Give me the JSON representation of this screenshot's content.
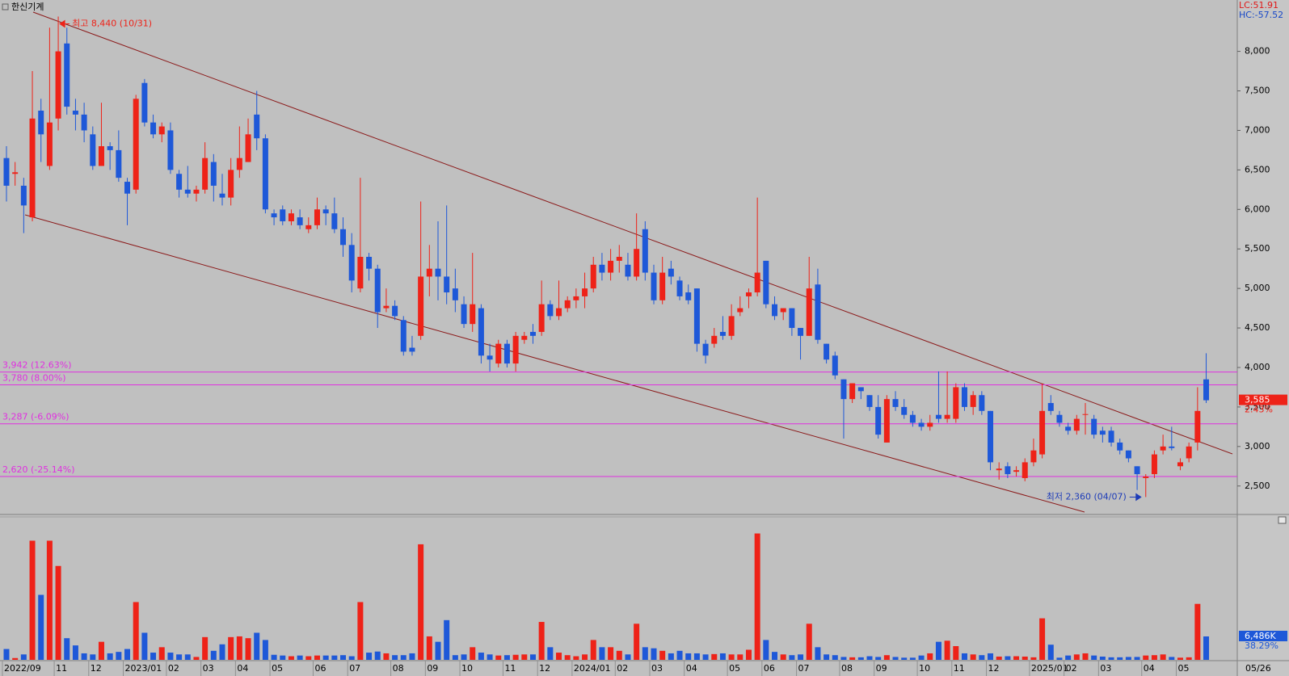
{
  "chart_data": {
    "type": "candlestick",
    "title": "한신기계",
    "indicator_lc": "LC:51.91",
    "indicator_hc": "HC:-57.52",
    "high_annotation": "최고 8,440 (10/31)",
    "low_annotation": "최저 2,360 (04/07)",
    "axis_date": "05/26",
    "up_color": "#ee2218",
    "down_color": "#1e58d8",
    "level_color": "#e030e0",
    "ylim": [
      2150,
      8650
    ],
    "yticks": [
      {
        "value": 2500,
        "label": "2,500"
      },
      {
        "value": 3000,
        "label": "3,000"
      },
      {
        "value": 3500,
        "label": "3,500"
      },
      {
        "value": 4000,
        "label": "4,000"
      },
      {
        "value": 4500,
        "label": "4,500"
      },
      {
        "value": 5000,
        "label": "5,000"
      },
      {
        "value": 5500,
        "label": "5,500"
      },
      {
        "value": 6000,
        "label": "6,000"
      },
      {
        "value": 6500,
        "label": "6,500"
      },
      {
        "value": 7000,
        "label": "7,000"
      },
      {
        "value": 7500,
        "label": "7,500"
      },
      {
        "value": 8000,
        "label": "8,000"
      }
    ],
    "levels": [
      {
        "value": 3942,
        "label": "3,942 (12.63%)"
      },
      {
        "value": 3780,
        "label": "3,780 (8.00%)"
      },
      {
        "value": 3287,
        "label": "3,287 (-6.09%)"
      },
      {
        "value": 2620,
        "label": "2,620 (-25.14%)"
      }
    ],
    "last_price": {
      "value": 3585,
      "label": "3,585"
    },
    "last_change": {
      "value": 2.43,
      "label": "2.43%"
    },
    "last_volume": {
      "value": 6486,
      "label": "6,486K"
    },
    "volume_ratio": {
      "value": 38.29,
      "label": "38.29%"
    },
    "categories": [
      "2022/09",
      null,
      null,
      null,
      null,
      null,
      "11",
      null,
      null,
      null,
      "12",
      null,
      null,
      null,
      "2023/01",
      null,
      null,
      null,
      null,
      "02",
      null,
      null,
      null,
      "03",
      null,
      null,
      null,
      "04",
      null,
      null,
      null,
      "05",
      null,
      null,
      null,
      null,
      "06",
      null,
      null,
      null,
      "07",
      null,
      null,
      null,
      null,
      "08",
      null,
      null,
      null,
      "09",
      null,
      null,
      null,
      "10",
      null,
      null,
      null,
      null,
      "11",
      null,
      null,
      null,
      "12",
      null,
      null,
      null,
      "2024/01",
      null,
      null,
      null,
      null,
      "02",
      null,
      null,
      null,
      "03",
      null,
      null,
      null,
      "04",
      null,
      null,
      null,
      null,
      "05",
      null,
      null,
      null,
      "06",
      null,
      null,
      null,
      "07",
      null,
      null,
      null,
      null,
      "08",
      null,
      null,
      null,
      "09",
      null,
      null,
      null,
      null,
      "10",
      null,
      null,
      null,
      "11",
      null,
      null,
      null,
      "12",
      null,
      null,
      null,
      null,
      "2025/01",
      null,
      null,
      null,
      "02",
      null,
      null,
      null,
      "03",
      null,
      null,
      null,
      null,
      "04",
      null,
      null,
      null,
      "05",
      null,
      null,
      null
    ],
    "open": [
      6650,
      6450,
      6300,
      5900,
      7250,
      6550,
      7150,
      8100,
      7250,
      7200,
      6950,
      6550,
      6800,
      6750,
      6350,
      6250,
      7600,
      7100,
      6950,
      7000,
      6450,
      6250,
      6200,
      6250,
      6600,
      6200,
      6150,
      6500,
      6600,
      7200,
      6900,
      5950,
      6000,
      5850,
      5900,
      5750,
      5800,
      6000,
      5950,
      5750,
      5550,
      5000,
      5400,
      5250,
      4750,
      4780,
      4600,
      4250,
      4400,
      5150,
      5250,
      5150,
      5000,
      4800,
      4550,
      4750,
      4150,
      4050,
      4300,
      4050,
      4350,
      4450,
      4450,
      4800,
      4650,
      4750,
      4850,
      4900,
      5000,
      5300,
      5200,
      5350,
      5300,
      5150,
      5750,
      5200,
      4850,
      5250,
      5100,
      4950,
      5000,
      4300,
      4300,
      4450,
      4400,
      4700,
      4900,
      4950,
      5350,
      4800,
      4700,
      4750,
      4500,
      4400,
      5050,
      4300,
      4150,
      3850,
      3600,
      3750,
      3650,
      3500,
      3050,
      3600,
      3500,
      3400,
      3300,
      3250,
      3400,
      3350,
      3350,
      3750,
      3500,
      3650,
      3450,
      2700,
      2750,
      2680,
      2600,
      2800,
      2900,
      3550,
      3400,
      3250,
      3200,
      3400,
      3350,
      3200,
      3200,
      3050,
      2950,
      2750,
      2600,
      2650,
      2950,
      3000,
      2750,
      2850,
      3050,
      3850
    ],
    "high": [
      6800,
      6600,
      6400,
      7750,
      7400,
      8300,
      8440,
      8300,
      7400,
      7350,
      7050,
      7350,
      6850,
      7000,
      6400,
      7450,
      7650,
      7200,
      7100,
      7100,
      6500,
      6550,
      6300,
      6850,
      6700,
      6450,
      6650,
      7050,
      7150,
      7500,
      6950,
      6000,
      6050,
      6000,
      6000,
      5900,
      6150,
      6050,
      6150,
      5900,
      5700,
      6400,
      5450,
      5300,
      5000,
      4850,
      4650,
      4400,
      6100,
      5550,
      5850,
      6050,
      5250,
      4900,
      5450,
      4800,
      4300,
      4350,
      4350,
      4450,
      4450,
      4550,
      5100,
      4850,
      5100,
      4900,
      5000,
      5200,
      5400,
      5450,
      5500,
      5550,
      5450,
      5950,
      5850,
      5300,
      5400,
      5350,
      5150,
      5050,
      5000,
      4350,
      4500,
      4650,
      4800,
      4900,
      5000,
      6150,
      5350,
      4900,
      4750,
      4750,
      4500,
      5400,
      5250,
      4300,
      4200,
      3850,
      3800,
      3750,
      3650,
      3650,
      3650,
      3700,
      3600,
      3450,
      3350,
      3400,
      3950,
      3950,
      3800,
      3800,
      3700,
      3700,
      3450,
      2800,
      2800,
      2750,
      2850,
      3100,
      3800,
      3650,
      3450,
      3300,
      3400,
      3550,
      3400,
      3250,
      3250,
      3100,
      2950,
      2750,
      2650,
      2950,
      3150,
      3250,
      2850,
      3050,
      3750,
      4180
    ],
    "low": [
      6100,
      6300,
      5700,
      5850,
      6600,
      6500,
      7000,
      7200,
      7000,
      6850,
      6500,
      6550,
      6500,
      6350,
      5800,
      6200,
      7050,
      6900,
      6850,
      6450,
      6150,
      6150,
      6100,
      6200,
      6100,
      6050,
      6050,
      6400,
      6600,
      6750,
      5950,
      5800,
      5800,
      5800,
      5750,
      5700,
      5750,
      5800,
      5700,
      5400,
      4950,
      4950,
      5100,
      4500,
      4700,
      4600,
      4150,
      4150,
      4350,
      4900,
      4850,
      4800,
      4700,
      4500,
      4450,
      4050,
      3950,
      4000,
      4000,
      3950,
      4300,
      4300,
      4400,
      4600,
      4600,
      4700,
      4750,
      4750,
      4950,
      5100,
      5100,
      5200,
      5100,
      5100,
      5100,
      4800,
      4800,
      5050,
      4850,
      4800,
      4200,
      4050,
      4250,
      4350,
      4350,
      4650,
      4750,
      4900,
      4750,
      4600,
      4600,
      4400,
      4100,
      4400,
      4300,
      4050,
      3850,
      3100,
      3550,
      3600,
      3450,
      3100,
      3050,
      3450,
      3350,
      3250,
      3200,
      3200,
      3300,
      3300,
      3300,
      3450,
      3400,
      3400,
      2700,
      2580,
      2600,
      2620,
      2560,
      2750,
      2850,
      3400,
      3250,
      3150,
      3150,
      3150,
      3100,
      3050,
      3000,
      2900,
      2800,
      2450,
      2360,
      2600,
      2900,
      2950,
      2700,
      2800,
      2950,
      3550
    ],
    "close": [
      6300,
      6470,
      6050,
      7150,
      6950,
      7100,
      8000,
      7300,
      7200,
      7000,
      6550,
      6800,
      6750,
      6400,
      6200,
      7400,
      7100,
      6950,
      7050,
      6500,
      6250,
      6200,
      6250,
      6650,
      6300,
      6150,
      6500,
      6650,
      6950,
      6900,
      6000,
      5900,
      5850,
      5950,
      5800,
      5800,
      6000,
      5950,
      5750,
      5550,
      5100,
      5400,
      5250,
      4700,
      4780,
      4650,
      4200,
      4200,
      5150,
      5250,
      5150,
      4950,
      4850,
      4550,
      4800,
      4150,
      4100,
      4300,
      4050,
      4400,
      4400,
      4400,
      4800,
      4650,
      4750,
      4850,
      4900,
      5000,
      5300,
      5200,
      5350,
      5400,
      5150,
      5500,
      5200,
      4850,
      5200,
      5150,
      4900,
      4850,
      4300,
      4150,
      4400,
      4400,
      4650,
      4750,
      4950,
      5200,
      4800,
      4650,
      4750,
      4500,
      4400,
      5000,
      4350,
      4100,
      3900,
      3600,
      3800,
      3700,
      3500,
      3150,
      3600,
      3500,
      3400,
      3300,
      3250,
      3300,
      3350,
      3400,
      3750,
      3500,
      3650,
      3450,
      2800,
      2720,
      2650,
      2700,
      2800,
      2950,
      3450,
      3450,
      3300,
      3200,
      3350,
      3410,
      3150,
      3150,
      3050,
      2950,
      2850,
      2650,
      2620,
      2900,
      3000,
      2980,
      2800,
      3000,
      3450,
      3585
    ],
    "volume": [
      3000,
      500,
      1500,
      33000,
      18000,
      33000,
      26000,
      6000,
      4000,
      1800,
      1500,
      5000,
      1800,
      2200,
      3000,
      16000,
      7500,
      2000,
      3500,
      2000,
      1500,
      1500,
      800,
      6300,
      2500,
      4300,
      6300,
      6500,
      6000,
      7500,
      5500,
      1400,
      1200,
      1000,
      1200,
      1000,
      1200,
      1200,
      1200,
      1300,
      1000,
      16000,
      2000,
      2300,
      1800,
      1300,
      1300,
      1800,
      32000,
      6500,
      5000,
      11000,
      1300,
      1500,
      3500,
      2000,
      1500,
      1200,
      1300,
      1400,
      1500,
      1500,
      10500,
      3500,
      2000,
      1300,
      1000,
      1500,
      5500,
      3500,
      3500,
      2500,
      1500,
      10000,
      3500,
      3200,
      2500,
      1800,
      2500,
      1800,
      1800,
      1500,
      1600,
      1800,
      1500,
      1500,
      2800,
      35000,
      5500,
      2200,
      1500,
      1300,
      1500,
      10000,
      3500,
      1500,
      1300,
      800,
      700,
      700,
      1000,
      800,
      1300,
      800,
      600,
      600,
      1200,
      1800,
      5000,
      5300,
      3800,
      1800,
      1500,
      1300,
      1800,
      900,
      1000,
      1000,
      900,
      700,
      11500,
      4200,
      600,
      1200,
      1500,
      1800,
      1200,
      900,
      700,
      700,
      800,
      800,
      1200,
      1300,
      1500,
      800,
      600,
      700,
      15500,
      6486
    ]
  }
}
